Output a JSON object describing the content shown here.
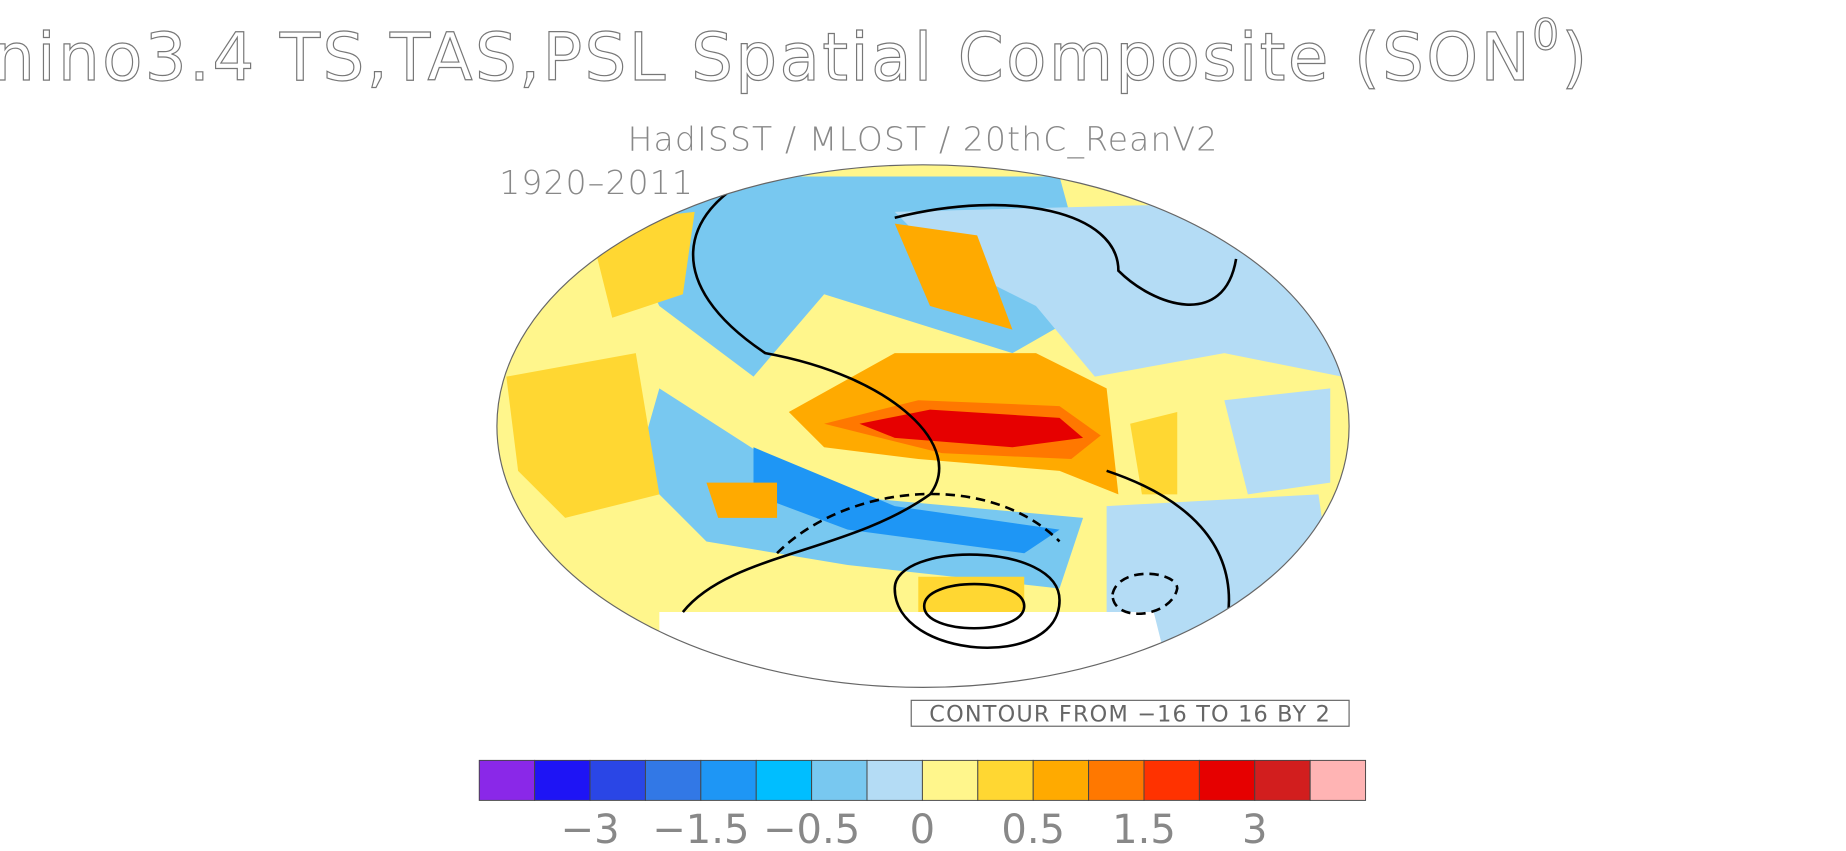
{
  "header": {
    "title": "nino3.4 TS,TAS,PSL Spatial Composite (SON",
    "title_superscript": "0",
    "title_close": ")",
    "subtitle": "HadISST / MLOST / 20thC_ReanV2",
    "period": "1920–2011"
  },
  "map": {
    "contour_label": "CONTOUR FROM −16 TO 16 BY 2"
  },
  "colorbar": {
    "colors": [
      "#8a28e8",
      "#1e14f5",
      "#2a46e6",
      "#3278e6",
      "#1e96f5",
      "#00beff",
      "#78c8f0",
      "#b4dcf5",
      "#fff68c",
      "#ffd732",
      "#ffaa00",
      "#ff7800",
      "#ff3200",
      "#e60000",
      "#d21e1e",
      "#ffb4b4"
    ],
    "ticks": [
      {
        "value": -3,
        "label": "−3"
      },
      {
        "value": -1.5,
        "label": "−1.5"
      },
      {
        "value": -0.5,
        "label": "−0.5"
      },
      0,
      0.5,
      1.5,
      3
    ]
  }
}
